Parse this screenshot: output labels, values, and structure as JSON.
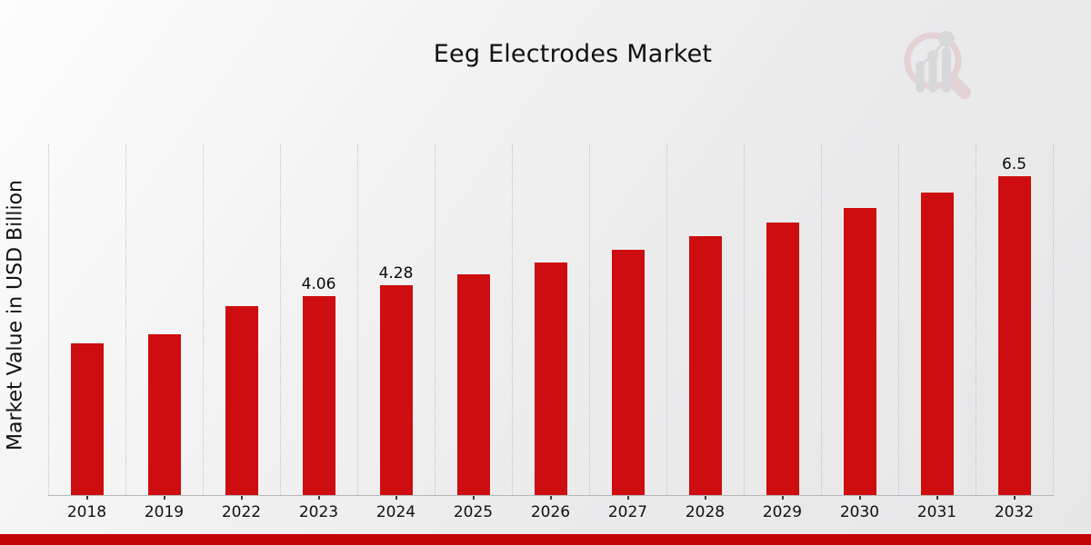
{
  "page": {
    "title": "Eeg Electrodes Market"
  },
  "chart_data": {
    "type": "bar",
    "title": "Eeg Electrodes Market",
    "xlabel": "",
    "ylabel": "Market Value in USD Billion",
    "categories": [
      "2018",
      "2019",
      "2022",
      "2023",
      "2024",
      "2025",
      "2026",
      "2027",
      "2028",
      "2029",
      "2030",
      "2031",
      "2032"
    ],
    "values": [
      3.09,
      3.28,
      3.85,
      4.06,
      4.28,
      4.51,
      4.75,
      5.0,
      5.28,
      5.56,
      5.85,
      6.17,
      6.5
    ],
    "data_labels": [
      "",
      "",
      "",
      "4.06",
      "4.28",
      "",
      "",
      "",
      "",
      "",
      "",
      "",
      "6.5"
    ],
    "ylim": [
      0,
      7.15
    ],
    "grid": "vertical-dotted",
    "legend": "none",
    "bar_color": "#cd0d0f",
    "gridline_color": "#c2c2c4",
    "axis_color": "#b8b8ba"
  },
  "footer": {
    "strip_color": "#c40506"
  },
  "logo": {
    "name": "magnifier-bar-chart-logo",
    "ring_color": "#dfbfc2",
    "bars_color": "#c8c9cc"
  }
}
